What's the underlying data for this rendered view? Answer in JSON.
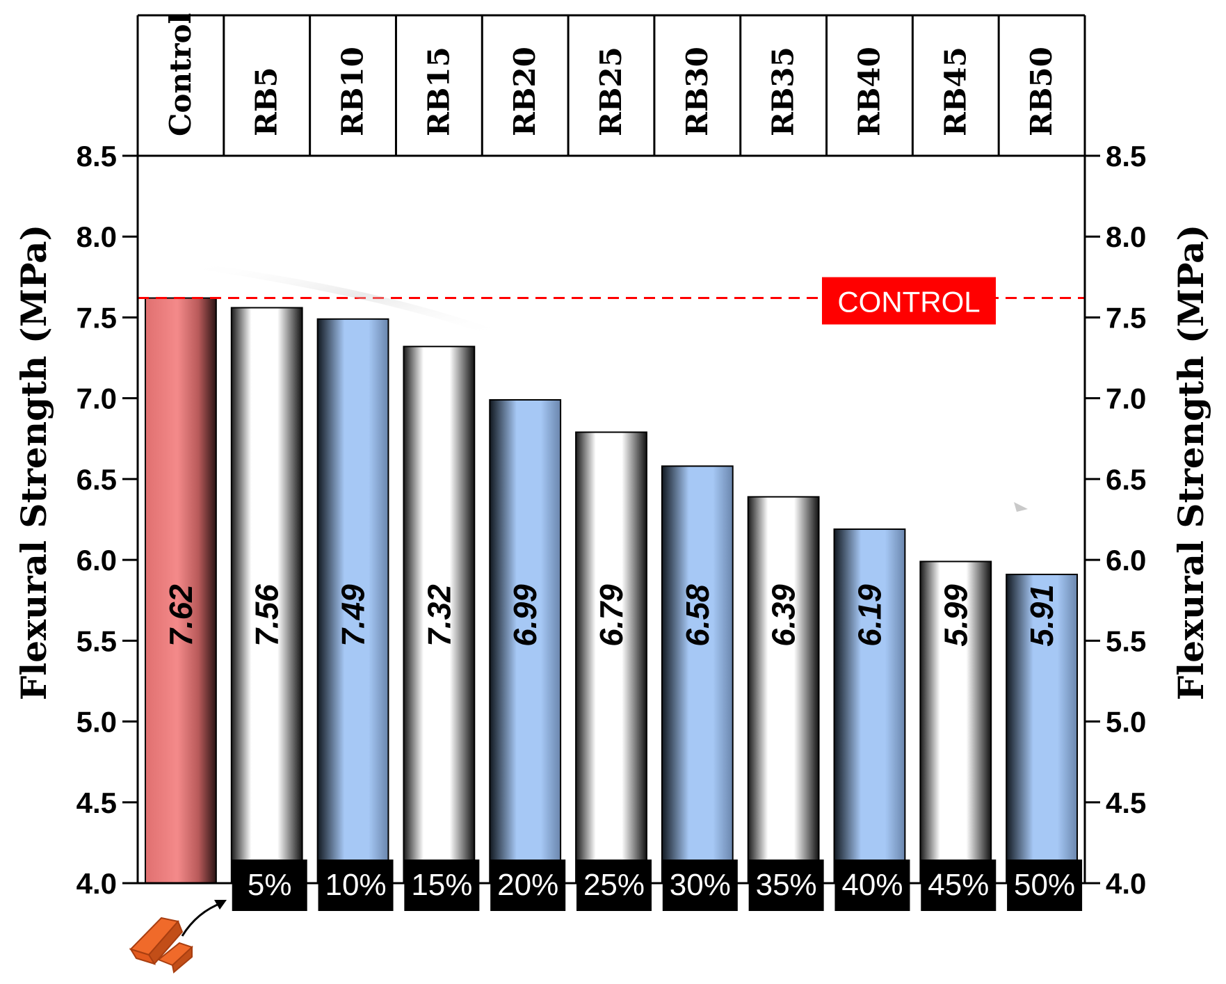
{
  "chart_data": {
    "type": "bar",
    "categories": [
      "Control",
      "RB5",
      "RB10",
      "RB15",
      "RB20",
      "RB25",
      "RB30",
      "RB35",
      "RB40",
      "RB45",
      "RB50"
    ],
    "values": [
      7.62,
      7.56,
      7.49,
      7.32,
      6.99,
      6.79,
      6.58,
      6.39,
      6.19,
      5.99,
      5.91
    ],
    "value_labels": [
      "7.62",
      "7.56",
      "7.49",
      "7.32",
      "6.99",
      "6.79",
      "6.58",
      "6.39",
      "6.19",
      "5.99",
      "5.91"
    ],
    "percent_labels": [
      "",
      "5%",
      "10%",
      "15%",
      "20%",
      "25%",
      "30%",
      "35%",
      "40%",
      "45%",
      "50%"
    ],
    "bar_styles": [
      "red",
      "white",
      "blue",
      "white",
      "blue",
      "white",
      "blue",
      "white",
      "blue",
      "white",
      "blue"
    ],
    "ylabel": "Flexural Strength (MPa)",
    "ylabel_right": "Flexural Strength (MPa)",
    "ylim": [
      4.0,
      8.5
    ],
    "yticks": [
      "4.0",
      "4.5",
      "5.0",
      "5.5",
      "6.0",
      "6.5",
      "7.0",
      "7.5",
      "8.0",
      "8.5"
    ],
    "reference_line": {
      "value": 7.62,
      "label": "CONTROL",
      "color": "#ff0000"
    },
    "colors": {
      "red": "#f47f7f",
      "blue": "#a6c8f5",
      "white": "#ffffff",
      "dark": "#111111"
    },
    "grid": false,
    "legend": "none"
  },
  "decoration": {
    "brick_icon": "brick-icon",
    "arrow_icon": "curved-arrow-icon"
  }
}
